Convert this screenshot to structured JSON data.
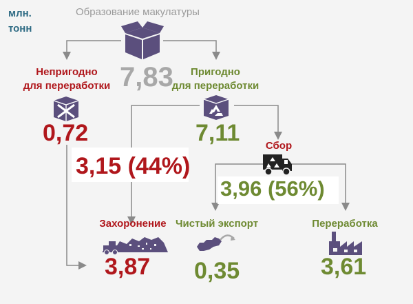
{
  "unit": "млн. тонн",
  "top": {
    "label": "Образование макулатуры",
    "value": "7,83",
    "icon": "box-icon"
  },
  "unfit": {
    "label_line1": "Непригодно",
    "label_line2": "для переработки",
    "value": "0,72",
    "icon": "crossed-box-icon"
  },
  "fit": {
    "label_line1": "Пригодно",
    "label_line2": "для переработки",
    "value": "7,11",
    "icon": "recycle-box-icon"
  },
  "landfill_share": "3,15 (44%)",
  "collection": {
    "label": "Сбор",
    "value": "3,96 (56%)",
    "icon": "truck-icon"
  },
  "landfill": {
    "label": "Захоронение",
    "value": "3,87",
    "icon": "landfill-icon"
  },
  "export": {
    "label": "Чистый экспорт",
    "value": "0,35",
    "icon": "russia-map-icon"
  },
  "recycling": {
    "label": "Переработка",
    "value": "3,61",
    "icon": "factory-icon"
  },
  "colors": {
    "red": "#b0171c",
    "green": "#6e8a32",
    "grey": "#8a8a8a",
    "purple": "#5b4f7d",
    "teal": "#2e6b84"
  }
}
